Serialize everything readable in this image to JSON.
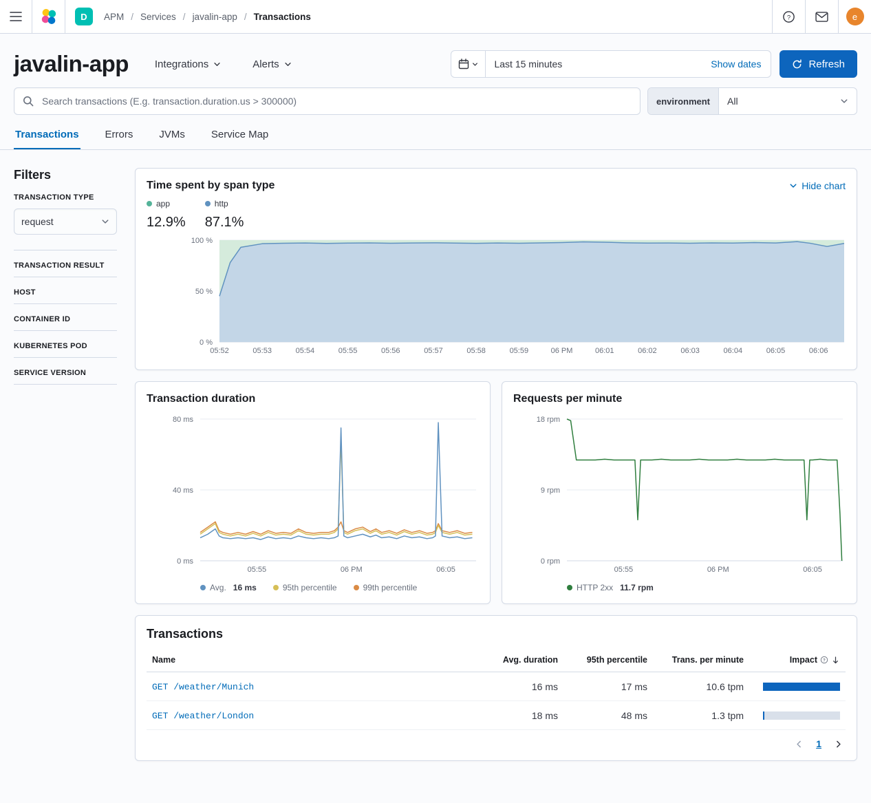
{
  "colors": {
    "link": "#006bb8",
    "primary": "#0d65bd",
    "badge_teal": "#00bfb3",
    "avatar_orange": "#e8852c",
    "border": "#d3dae6",
    "page_background": "#fafbfd",
    "impact_track": "#d9e0ea"
  },
  "topbar": {
    "breadcrumbs": [
      "APM",
      "Services",
      "javalin-app",
      "Transactions"
    ],
    "space_initial": "D",
    "avatar_initial": "e"
  },
  "header": {
    "title": "javalin-app",
    "actions": [
      {
        "label": "Integrations"
      },
      {
        "label": "Alerts"
      }
    ],
    "datepicker": {
      "value": "Last 15 minutes",
      "show_dates": "Show dates"
    },
    "refresh_label": "Refresh"
  },
  "search": {
    "placeholder": "Search transactions (E.g. transaction.duration.us > 300000)",
    "environment_label": "environment",
    "environment_value": "All"
  },
  "tabs": [
    {
      "label": "Transactions",
      "active": true
    },
    {
      "label": "Errors",
      "active": false
    },
    {
      "label": "JVMs",
      "active": false
    },
    {
      "label": "Service Map",
      "active": false
    }
  ],
  "filters": {
    "title": "Filters",
    "transaction_type": {
      "label": "TRANSACTION TYPE",
      "value": "request"
    },
    "sections": [
      "TRANSACTION RESULT",
      "HOST",
      "CONTAINER ID",
      "KUBERNETES POD",
      "SERVICE VERSION"
    ]
  },
  "span_card": {
    "hide_chart_label": "Hide chart",
    "legend": [
      {
        "label": "app",
        "pct": "12.9%"
      },
      {
        "label": "http",
        "pct": "87.1%"
      }
    ]
  },
  "duration_legend": [
    {
      "label": "Avg.",
      "value": "16 ms"
    },
    {
      "label": "95th percentile"
    },
    {
      "label": "99th percentile"
    }
  ],
  "rpm_legend": [
    {
      "label": "HTTP 2xx",
      "value": "11.7 rpm"
    }
  ],
  "chart_data": [
    {
      "id": "time-spent-by-span-type",
      "type": "stacked_area",
      "title": "Time spent by span type",
      "xlim": [
        0,
        14.6
      ],
      "ylim": [
        0,
        100
      ],
      "yticks": [
        {
          "label": "0 %",
          "value": 0
        },
        {
          "label": "50 %",
          "value": 50
        },
        {
          "label": "100 %",
          "value": 100
        }
      ],
      "xticks": [
        {
          "label": "05:52",
          "value": 0
        },
        {
          "label": "05:53",
          "value": 1
        },
        {
          "label": "05:54",
          "value": 2
        },
        {
          "label": "05:55",
          "value": 3
        },
        {
          "label": "05:56",
          "value": 4
        },
        {
          "label": "05:57",
          "value": 5
        },
        {
          "label": "05:58",
          "value": 6
        },
        {
          "label": "05:59",
          "value": 7
        },
        {
          "label": "06 PM",
          "value": 8
        },
        {
          "label": "06:01",
          "value": 9
        },
        {
          "label": "06:02",
          "value": 10
        },
        {
          "label": "06:03",
          "value": 11
        },
        {
          "label": "06:04",
          "value": 12
        },
        {
          "label": "06:05",
          "value": 13
        },
        {
          "label": "06:06",
          "value": 14
        }
      ],
      "x": [
        0,
        0.25,
        0.5,
        1,
        1.5,
        2,
        2.5,
        3,
        3.5,
        4,
        4.5,
        5,
        5.5,
        6,
        6.5,
        7,
        7.5,
        8,
        8.5,
        9,
        9.5,
        10,
        10.5,
        11,
        11.5,
        12,
        12.5,
        13,
        13.5,
        13.8,
        14.2,
        14.6
      ],
      "series": [
        {
          "name": "http",
          "percent_of_time": "87.1%",
          "color": "#6092c0",
          "fill": "#c3d6e7",
          "values": [
            45,
            78,
            93,
            96.5,
            97,
            97.2,
            96.8,
            97.1,
            97.3,
            97,
            97.2,
            97.4,
            97.1,
            96.9,
            97.2,
            97,
            97.3,
            97.6,
            98.3,
            98,
            97.4,
            97.1,
            97.2,
            97,
            97.3,
            97.1,
            97.6,
            97.2,
            98.6,
            97,
            93.8,
            96.8
          ]
        },
        {
          "name": "app",
          "percent_of_time": "12.9%",
          "color": "#54b399",
          "fill": "#d5ebdc",
          "fill_to_top": true
        }
      ]
    },
    {
      "id": "transaction-duration",
      "type": "line",
      "title": "Transaction duration",
      "xlim": [
        0,
        14.6
      ],
      "ylim": [
        0,
        80
      ],
      "yticks": [
        {
          "label": "0 ms",
          "value": 0
        },
        {
          "label": "40 ms",
          "value": 40
        },
        {
          "label": "80 ms",
          "value": 80
        }
      ],
      "xticks": [
        {
          "label": "05:55",
          "value": 3
        },
        {
          "label": "06 PM",
          "value": 8
        },
        {
          "label": "06:05",
          "value": 13
        }
      ],
      "x": [
        0,
        0.4,
        0.8,
        1.0,
        1.2,
        1.6,
        2.0,
        2.4,
        2.8,
        3.2,
        3.6,
        4.0,
        4.4,
        4.8,
        5.2,
        5.6,
        6.0,
        6.4,
        6.8,
        7.1,
        7.3,
        7.45,
        7.6,
        7.8,
        8.2,
        8.6,
        9.0,
        9.3,
        9.6,
        10.0,
        10.4,
        10.8,
        11.2,
        11.6,
        12.0,
        12.3,
        12.45,
        12.6,
        12.8,
        13.2,
        13.6,
        14.0,
        14.4
      ],
      "series": [
        {
          "name": "99th percentile",
          "color": "#da8b45",
          "values": [
            16,
            19,
            22,
            17,
            16,
            15,
            16,
            15,
            16.5,
            15,
            17,
            15.5,
            16,
            15.5,
            18,
            16,
            15.5,
            16,
            16,
            17,
            19,
            22,
            17,
            16,
            18,
            19,
            16.5,
            18,
            16,
            17,
            15.5,
            17.5,
            16,
            17,
            15.5,
            16,
            17,
            21,
            17,
            16,
            17,
            15.5,
            16
          ]
        },
        {
          "name": "95th percentile",
          "color": "#d6bf57",
          "values": [
            15,
            18,
            21,
            16,
            15,
            14,
            15,
            14,
            15.5,
            14,
            16,
            14.5,
            15,
            14.5,
            17,
            15,
            14.5,
            15,
            15,
            16,
            18,
            68,
            16,
            15,
            17,
            18,
            15.5,
            17,
            15,
            16,
            14.5,
            16.5,
            15,
            16,
            14.5,
            15,
            16,
            20,
            16,
            15,
            16,
            14.5,
            15
          ]
        },
        {
          "name": "Avg.",
          "avg_value": "16 ms",
          "color": "#6092c0",
          "values": [
            13,
            15,
            18,
            14,
            13,
            12.5,
            13,
            12.5,
            13,
            12,
            13.5,
            12.5,
            13,
            12.5,
            14,
            13,
            12.5,
            13,
            12.5,
            13,
            14,
            75,
            14,
            13,
            14,
            15,
            13.5,
            14.5,
            13,
            13.5,
            12.5,
            14,
            13,
            13.5,
            12.5,
            13,
            14,
            78,
            14,
            13,
            13.5,
            12.5,
            13
          ]
        }
      ]
    },
    {
      "id": "requests-per-minute",
      "type": "line",
      "title": "Requests per minute",
      "xlim": [
        0,
        14.6
      ],
      "ylim": [
        0,
        18
      ],
      "yticks": [
        {
          "label": "0 rpm",
          "value": 0
        },
        {
          "label": "9 rpm",
          "value": 9
        },
        {
          "label": "18 rpm",
          "value": 18
        }
      ],
      "xticks": [
        {
          "label": "05:55",
          "value": 3
        },
        {
          "label": "06 PM",
          "value": 8
        },
        {
          "label": "06:05",
          "value": 13
        }
      ],
      "x": [
        0,
        0.2,
        0.5,
        1.0,
        1.5,
        2.0,
        2.5,
        3.0,
        3.4,
        3.6,
        3.75,
        3.9,
        4.1,
        4.5,
        5.0,
        5.5,
        6.0,
        6.5,
        7.0,
        7.5,
        8.0,
        8.5,
        9.0,
        9.5,
        10.0,
        10.5,
        11.0,
        11.5,
        12.0,
        12.4,
        12.55,
        12.7,
        12.85,
        13.0,
        13.4,
        13.8,
        14.1,
        14.3,
        14.45,
        14.55
      ],
      "series": [
        {
          "name": "HTTP 2xx",
          "rate": "11.7 rpm",
          "color": "#2f7e3e",
          "values": [
            18,
            17.8,
            12.8,
            12.8,
            12.8,
            12.9,
            12.8,
            12.8,
            12.8,
            12.8,
            5.2,
            12.8,
            12.8,
            12.8,
            12.9,
            12.8,
            12.8,
            12.8,
            12.9,
            12.8,
            12.8,
            12.8,
            12.9,
            12.8,
            12.8,
            12.8,
            12.9,
            12.8,
            12.8,
            12.8,
            12.8,
            5.2,
            12.8,
            12.8,
            12.9,
            12.8,
            12.8,
            12.8,
            6,
            0
          ]
        }
      ]
    }
  ],
  "table": {
    "title": "Transactions",
    "columns": [
      "Name",
      "Avg. duration",
      "95th percentile",
      "Trans. per minute",
      "Impact"
    ],
    "rows": [
      {
        "name": "GET /weather/Munich",
        "avg": "16 ms",
        "p95": "17 ms",
        "tpm": "10.6 tpm",
        "impact_pct": 100
      },
      {
        "name": "GET /weather/London",
        "avg": "18 ms",
        "p95": "48 ms",
        "tpm": "1.3 tpm",
        "impact_pct": 2
      }
    ]
  },
  "pagination": {
    "page": "1"
  }
}
